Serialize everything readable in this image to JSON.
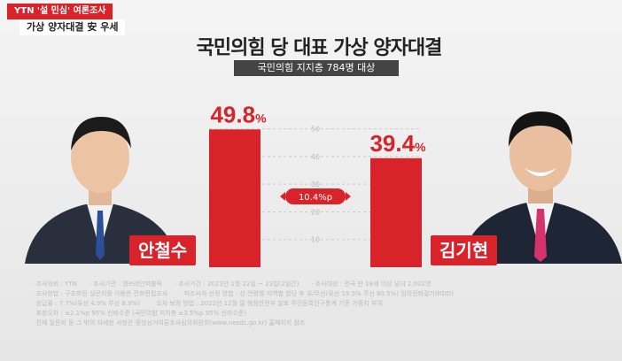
{
  "badge": "YTN '설 민심' 여론조사",
  "badge_sub": "가상 양자대결 安 우세",
  "chart_data": {
    "type": "bar",
    "title": "국민의힘 당 대표 가상 양자대결",
    "subtitle": "국민의힘 지지층 784명 대상",
    "categories": [
      "안철수",
      "김기현"
    ],
    "values": [
      49.8,
      39.4
    ],
    "value_labels": [
      "49.8%",
      "39.4%"
    ],
    "gap_label": "10.4%p",
    "ylim": [
      0,
      55
    ],
    "yticks": [
      10,
      20,
      30,
      40,
      50
    ],
    "colors": {
      "bar": "#d8232a",
      "grid": "#cccccc"
    }
  },
  "notes": [
    [
      "조사의뢰 : YTN",
      "조사기관 : 엠브레인퍼블릭",
      "조사기간 : 2023년 1월 22일 ~ 23일(2일간)",
      "조사대상 : 전국 만 18세 이상 남녀 2,002명"
    ],
    [
      "조사방법 : 구조화된 설문지를 이용한 전화면접조사",
      "피조사자 선정 방법 : 성·연령별·지역별 할당 후 유/무선(유선 19.5% 무선 80.5%) 임의전화걸기(RDD)"
    ],
    [
      "응답률 : 7.7%(유선 4.9% 무선 8.9%)",
      "오차 보정 방법 : 2022년 12월 말 행정안전부 발표 주민등록인구통계 기준 가중치 부여"
    ],
    [
      "표본오차 : ±2.1%p 95% 신뢰수준 (국민의힘 지지층 ±3.5%p 95% 신뢰수준)"
    ],
    [
      "전체 질문지 등 그 밖의 자세한 사항은 중앙선거여론조사심의위원회(www.nesdc.go.kr) 홈페이지 참조"
    ]
  ]
}
